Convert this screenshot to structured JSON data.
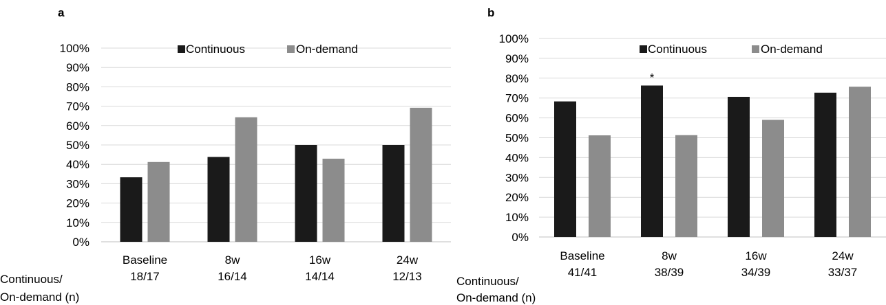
{
  "n_label_lines": [
    "Continuous/",
    "On-demand (n)"
  ],
  "colors": {
    "Continuous": "#1a1a1a",
    "On-demand": "#8c8c8c",
    "grid": "#d9d9d9",
    "axis": "#bfbfbf"
  },
  "chart_data": [
    {
      "type": "bar",
      "panel": "a",
      "categories": [
        "Baseline",
        "8w",
        "16w",
        "24w"
      ],
      "category_n": [
        "18/17",
        "16/14",
        "14/14",
        "12/13"
      ],
      "series": [
        {
          "name": "Continuous",
          "values": [
            33.3,
            43.8,
            50.0,
            50.0
          ]
        },
        {
          "name": "On-demand",
          "values": [
            41.2,
            64.3,
            42.9,
            69.2
          ]
        }
      ],
      "ylim": [
        0,
        100
      ],
      "yticks": [
        "0%",
        "10%",
        "20%",
        "30%",
        "40%",
        "50%",
        "60%",
        "70%",
        "80%",
        "90%",
        "100%"
      ],
      "grid": true,
      "legend": "top",
      "annotations": []
    },
    {
      "type": "bar",
      "panel": "b",
      "categories": [
        "Baseline",
        "8w",
        "16w",
        "24w"
      ],
      "category_n": [
        "41/41",
        "38/39",
        "34/39",
        "33/37"
      ],
      "series": [
        {
          "name": "Continuous",
          "values": [
            68.3,
            76.3,
            70.6,
            72.7
          ]
        },
        {
          "name": "On-demand",
          "values": [
            51.2,
            51.3,
            59.0,
            75.7
          ]
        }
      ],
      "ylim": [
        0,
        100
      ],
      "yticks": [
        "0%",
        "10%",
        "20%",
        "30%",
        "40%",
        "50%",
        "60%",
        "70%",
        "80%",
        "90%",
        "100%"
      ],
      "grid": true,
      "legend": "top",
      "annotations": [
        {
          "category": "8w",
          "text": "*"
        }
      ]
    }
  ]
}
